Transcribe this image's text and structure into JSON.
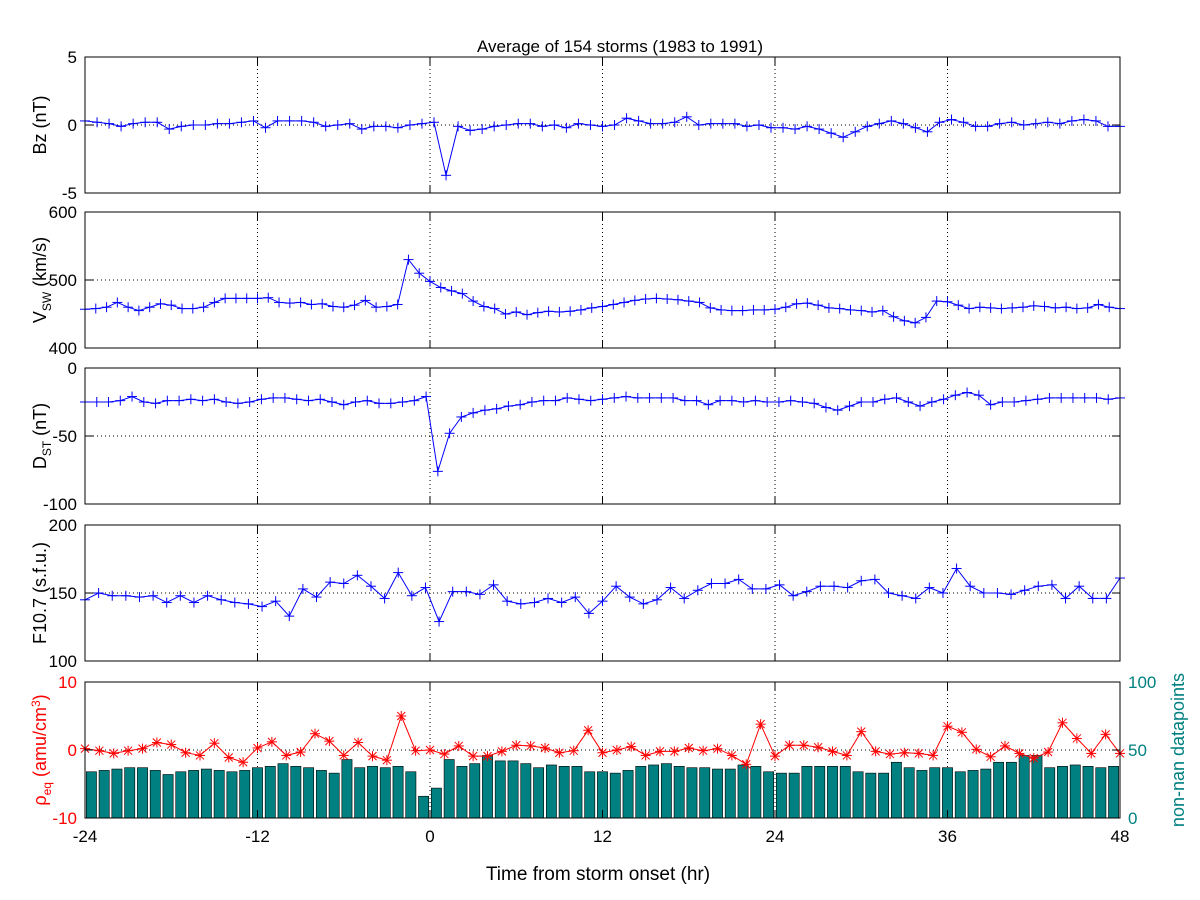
{
  "chart_data": [
    {
      "type": "line",
      "title": "Average of 154 storms  (1983 to 1991)",
      "ylabel": "Bz (nT)",
      "ylim": [
        -5,
        5
      ],
      "yticks": [
        "5",
        "0",
        "-5"
      ],
      "xlim": [
        -24,
        48
      ],
      "grid": true,
      "series": [
        {
          "values": [
            0.3,
            0.2,
            0.1,
            -0.1,
            0.1,
            0.2,
            0.2,
            -0.3,
            -0.1,
            0.0,
            0,
            0.1,
            0.1,
            0.2,
            0.3,
            -0.2,
            0.3,
            0.3,
            0.3,
            0.2,
            -0.1,
            0.0,
            0.1,
            -0.3,
            -0.1,
            -0.1,
            -0.2,
            0.0,
            0.1,
            0.2,
            -3.7,
            -0.1,
            -0.4,
            -0.3,
            -0.1,
            0,
            0.1,
            0.1,
            -0.1,
            0.0,
            -0.2,
            0.1,
            0.0,
            -0.1,
            0.0,
            0.5,
            0.3,
            0.1,
            0.1,
            0.2,
            0.6,
            0.0,
            0.1,
            0.1,
            0.1,
            -0.1,
            0.0,
            -0.2,
            -0.2,
            -0.3,
            -0.1,
            -0.3,
            -0.6,
            -0.9,
            -0.5,
            -0.1,
            0.1,
            0.3,
            0.1,
            -0.2,
            -0.5,
            0.2,
            0.4,
            0.2,
            -0.1,
            -0.1,
            0.1,
            0.2,
            0.0,
            0.1,
            0.2,
            0.1,
            0.3,
            0.4,
            0.3,
            -0.1,
            -0.1
          ],
          "color": "#0000ff"
        }
      ]
    },
    {
      "type": "line",
      "ylabel": "V",
      "ylabel_sub": "SW",
      "ylabel_unit": " (km/s)",
      "ylim": [
        400,
        600
      ],
      "yticks": [
        "600",
        "500",
        "400"
      ],
      "xlim": [
        -24,
        48
      ],
      "grid": true,
      "series": [
        {
          "values": [
            457,
            458,
            460,
            467,
            460,
            455,
            460,
            465,
            463,
            458,
            458,
            460,
            467,
            473,
            473,
            473,
            473,
            474,
            467,
            466,
            467,
            464,
            465,
            461,
            460,
            463,
            470,
            460,
            461,
            464,
            530,
            510,
            498,
            489,
            484,
            480,
            469,
            461,
            458,
            450,
            453,
            449,
            452,
            454,
            453,
            454,
            456,
            459,
            461,
            464,
            467,
            470,
            472,
            473,
            472,
            471,
            469,
            467,
            459,
            456,
            455,
            455,
            456,
            456,
            457,
            460,
            465,
            466,
            463,
            459,
            458,
            456,
            455,
            453,
            455,
            446,
            440,
            437,
            445,
            469,
            468,
            463,
            458,
            460,
            459,
            458,
            459,
            460,
            462,
            461,
            459,
            460,
            458,
            459,
            464,
            460,
            458
          ],
          "color": "#0000ff"
        }
      ]
    },
    {
      "type": "line",
      "ylabel": "D",
      "ylabel_sub": "ST",
      "ylabel_unit": " (nT)",
      "ylim": [
        -100,
        0
      ],
      "yticks": [
        "0",
        "-50",
        "-100"
      ],
      "xlim": [
        -24,
        48
      ],
      "grid": true,
      "series": [
        {
          "values": [
            -25,
            -25,
            -25,
            -24,
            -21,
            -25,
            -26,
            -24,
            -24,
            -23,
            -24,
            -23,
            -25,
            -26,
            -25,
            -23,
            -22,
            -22,
            -23,
            -24,
            -23,
            -25,
            -27,
            -25,
            -24,
            -26,
            -26,
            -25,
            -24,
            -21,
            -76,
            -48,
            -36,
            -33,
            -31,
            -30,
            -28,
            -27,
            -25,
            -24,
            -24,
            -22,
            -23,
            -24,
            -23,
            -22,
            -21,
            -22,
            -22,
            -22,
            -22,
            -24,
            -24,
            -27,
            -24,
            -24,
            -25,
            -24,
            -25,
            -25,
            -24,
            -25,
            -26,
            -29,
            -31,
            -28,
            -25,
            -25,
            -23,
            -22,
            -25,
            -28,
            -25,
            -23,
            -20,
            -18,
            -20,
            -27,
            -25,
            -25,
            -24,
            -23,
            -22,
            -22,
            -22,
            -22,
            -22,
            -23,
            -22
          ],
          "color": "#0000ff"
        }
      ]
    },
    {
      "type": "line",
      "ylabel": "F10.7 (s.f.u.)",
      "ylim": [
        100,
        200
      ],
      "yticks": [
        "200",
        "150",
        "100"
      ],
      "xlim": [
        -24,
        48
      ],
      "grid": true,
      "series": [
        {
          "values": [
            145,
            150,
            148,
            148,
            147,
            148,
            143,
            148,
            143,
            148,
            145,
            143,
            142,
            140,
            144,
            133,
            153,
            147,
            158,
            157,
            163,
            155,
            146,
            165,
            148,
            154,
            129,
            151,
            151,
            149,
            156,
            144,
            142,
            143,
            146,
            143,
            147,
            135,
            144,
            155,
            147,
            142,
            145,
            154,
            146,
            152,
            157,
            157,
            160,
            153,
            153,
            156,
            148,
            151,
            155,
            155,
            154,
            159,
            160,
            150,
            148,
            146,
            154,
            150,
            168,
            155,
            150,
            150,
            149,
            152,
            155,
            156,
            146,
            155,
            146,
            146,
            161
          ],
          "color": "#0000ff"
        }
      ]
    },
    {
      "type": "bar",
      "ylabel": "ρ",
      "ylabel_sub": "eq",
      "ylabel_unit": " (amu/cm",
      "ylabel_sup": "3",
      "ylabel_close": ")",
      "ylim": [
        -10,
        10
      ],
      "yticks": [
        "10",
        "0",
        "-10"
      ],
      "y2label": "non-nan datapoints",
      "y2lim": [
        0,
        100
      ],
      "y2ticks": [
        "100",
        "50",
        "0"
      ],
      "xlim": [
        -24,
        48
      ],
      "grid": true,
      "bar_color": "#008080",
      "line_color": "#ff0000",
      "series": [
        {
          "name": "rho_eq",
          "axis": "left",
          "values": [
            0.2,
            -0.1,
            -0.5,
            -0.1,
            0.2,
            1.1,
            0.8,
            -0.4,
            -0.8,
            1.0,
            -1.1,
            -1.8,
            0.3,
            1.2,
            -0.8,
            -0.3,
            2.4,
            1.3,
            -0.8,
            1.1,
            -0.9,
            -1.5,
            5.0,
            -0.1,
            0.0,
            -0.6,
            0.6,
            -0.9,
            -0.9,
            -0.2,
            0.7,
            0.6,
            0.3,
            -0.4,
            -0.1,
            2.9,
            -0.4,
            0.0,
            0.5,
            -0.8,
            -0.2,
            -0.2,
            0.3,
            -0.1,
            0.2,
            -0.8,
            -2.1,
            3.8,
            -0.9,
            0.7,
            0.7,
            0.4,
            -0.2,
            -0.8,
            2.7,
            -0.2,
            -0.6,
            -0.4,
            -0.5,
            -0.8,
            3.5,
            2.6,
            0.1,
            -1.0,
            0.6,
            -0.5,
            -1.2,
            -0.3,
            4.0,
            1.7,
            -0.5,
            2.3,
            -0.5
          ],
          "x_step": 1
        },
        {
          "name": "non-nan datapoints",
          "axis": "right",
          "values": [
            34,
            35,
            36,
            37,
            37,
            35,
            32,
            34,
            35,
            36,
            35,
            34,
            35,
            37,
            38,
            40,
            38,
            37,
            35,
            33,
            43,
            37,
            38,
            37,
            38,
            34,
            16,
            22,
            43,
            38,
            40,
            46,
            42,
            42,
            40,
            37,
            39,
            38,
            38,
            34,
            34,
            33,
            35,
            38,
            39,
            40,
            38,
            37,
            37,
            36,
            36,
            39,
            38,
            34,
            33,
            33,
            38,
            38,
            38,
            38,
            34,
            33,
            33,
            41,
            37,
            35,
            37,
            37,
            34,
            35,
            36,
            41,
            41,
            46,
            46,
            37,
            38,
            39,
            38,
            37,
            38
          ],
          "x_step": 1
        }
      ],
      "xlabel": "Time from storm onset (hr)",
      "xticks": [
        "-24",
        "-12",
        "0",
        "12",
        "24",
        "36",
        "48"
      ]
    }
  ]
}
